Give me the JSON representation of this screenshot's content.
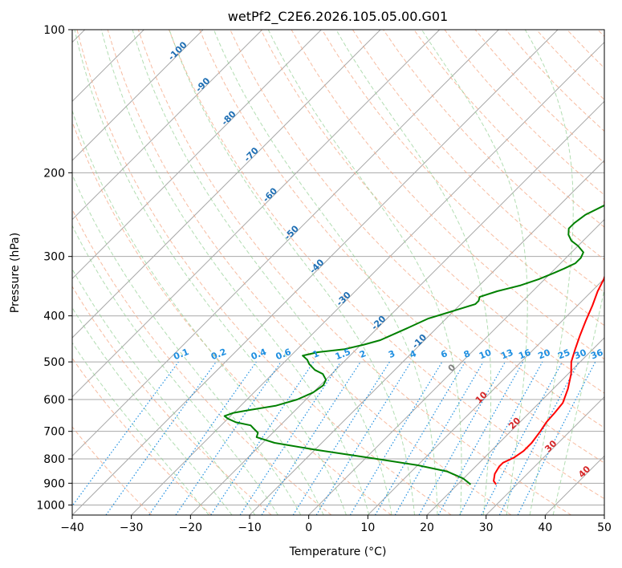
{
  "chart_data": {
    "type": "line",
    "title": "wetPf2_C2E6.2026.105.05.00.G01",
    "xlabel": "Temperature (°C)",
    "ylabel": "Pressure (hPa)",
    "xlim": [
      -40,
      50
    ],
    "ylim": [
      1050,
      100
    ],
    "x_ticks": [
      -40,
      -30,
      -20,
      -10,
      0,
      10,
      20,
      30,
      40,
      50
    ],
    "y_ticks": [
      100,
      200,
      300,
      400,
      500,
      600,
      700,
      800,
      900,
      1000
    ],
    "series": [
      {
        "name": "temperature",
        "color": "#ff0000",
        "points": [
          [
            26.5,
            905
          ],
          [
            25.5,
            890
          ],
          [
            24.5,
            860
          ],
          [
            24.0,
            830
          ],
          [
            24.0,
            815
          ],
          [
            25.0,
            795
          ],
          [
            25.5,
            770
          ],
          [
            25.5,
            740
          ],
          [
            25.0,
            700
          ],
          [
            24.5,
            670
          ],
          [
            24.3,
            640
          ],
          [
            24.0,
            610
          ],
          [
            22.5,
            570
          ],
          [
            20.5,
            530
          ],
          [
            18.5,
            500
          ],
          [
            17.0,
            470
          ],
          [
            15.5,
            440
          ],
          [
            14.0,
            410
          ],
          [
            12.5,
            380
          ],
          [
            11.0,
            355
          ],
          [
            10.0,
            335
          ],
          [
            8.5,
            315
          ],
          [
            5.5,
            290
          ],
          [
            3.0,
            270
          ],
          [
            0.0,
            250
          ],
          [
            -3.0,
            230
          ],
          [
            -5.5,
            210
          ],
          [
            -7.5,
            195
          ],
          [
            -9.5,
            180
          ],
          [
            -11.5,
            165
          ],
          [
            -13.5,
            150
          ],
          [
            -15.0,
            140
          ],
          [
            -16.0,
            132
          ],
          [
            -16.0,
            124
          ],
          [
            -15.0,
            115
          ],
          [
            -13.0,
            107
          ],
          [
            -12.0,
            100
          ]
        ]
      },
      {
        "name": "dewpoint",
        "color": "#008000",
        "points": [
          [
            22.2,
            905
          ],
          [
            20.0,
            880
          ],
          [
            16.0,
            850
          ],
          [
            10.0,
            825
          ],
          [
            2.0,
            800
          ],
          [
            -10.0,
            765
          ],
          [
            -18.0,
            740
          ],
          [
            -22.0,
            720
          ],
          [
            -22.5,
            705
          ],
          [
            -24.0,
            690
          ],
          [
            -25.0,
            680
          ],
          [
            -28.0,
            670
          ],
          [
            -30.0,
            658
          ],
          [
            -31.0,
            650
          ],
          [
            -30.0,
            640
          ],
          [
            -28.0,
            632
          ],
          [
            -24.0,
            618
          ],
          [
            -21.5,
            600
          ],
          [
            -20.0,
            580
          ],
          [
            -19.5,
            560
          ],
          [
            -20.0,
            545
          ],
          [
            -21.5,
            530
          ],
          [
            -23.5,
            520
          ],
          [
            -25.5,
            505
          ],
          [
            -26.5,
            495
          ],
          [
            -28.0,
            485
          ],
          [
            -26.0,
            477
          ],
          [
            -22.0,
            470
          ],
          [
            -19.5,
            460
          ],
          [
            -17.5,
            450
          ],
          [
            -16.5,
            440
          ],
          [
            -15.0,
            425
          ],
          [
            -13.0,
            405
          ],
          [
            -11.0,
            395
          ],
          [
            -9.0,
            385
          ],
          [
            -7.5,
            378
          ],
          [
            -7.5,
            372
          ],
          [
            -8.0,
            365
          ],
          [
            -6.0,
            355
          ],
          [
            -3.0,
            345
          ],
          [
            -1.0,
            335
          ],
          [
            0.5,
            325
          ],
          [
            1.5,
            318
          ],
          [
            2.5,
            310
          ],
          [
            2.5,
            302
          ],
          [
            2.0,
            294
          ],
          [
            0.0,
            285
          ],
          [
            -2.0,
            278
          ],
          [
            -3.5,
            270
          ],
          [
            -4.5,
            262
          ],
          [
            -4.5,
            255
          ],
          [
            -4.0,
            245
          ],
          [
            -2.5,
            235
          ],
          [
            -1.5,
            225
          ],
          [
            -0.5,
            215
          ],
          [
            -1.0,
            205
          ],
          [
            -2.5,
            195
          ],
          [
            -5.0,
            183
          ],
          [
            -7.5,
            170
          ],
          [
            -10.0,
            155
          ],
          [
            -12.5,
            140
          ],
          [
            -15.0,
            125
          ],
          [
            -17.0,
            115
          ],
          [
            -17.5,
            110
          ],
          [
            -16.5,
            105
          ],
          [
            -15.5,
            100
          ]
        ]
      }
    ],
    "mixing_ratio_labels": [
      "0.1",
      "0.2",
      "0.4",
      "0.6",
      "1",
      "1.5",
      "2",
      "3",
      "4",
      "6",
      "8",
      "10",
      "13",
      "16",
      "20",
      "25",
      "30",
      "36"
    ],
    "isotherm_labels_blue": [
      "-100",
      "-90",
      "-80",
      "-70",
      "-60",
      "-50",
      "-40",
      "-30",
      "-20",
      "-10"
    ],
    "isotherm_labels_red": [
      "10",
      "20",
      "30",
      "40"
    ],
    "isotherm_label_zero": "0",
    "colors": {
      "temperature": "#ff0000",
      "dewpoint": "#008000",
      "dry_adiabat": "#f4a582",
      "moist_adiabat": "#91cf91",
      "mixing_ratio": "#1f8fe0",
      "grid": "#a8a8a8",
      "iso_blue": "#1f6fb4",
      "iso_red": "#d62728",
      "iso_gray": "#808080"
    }
  }
}
